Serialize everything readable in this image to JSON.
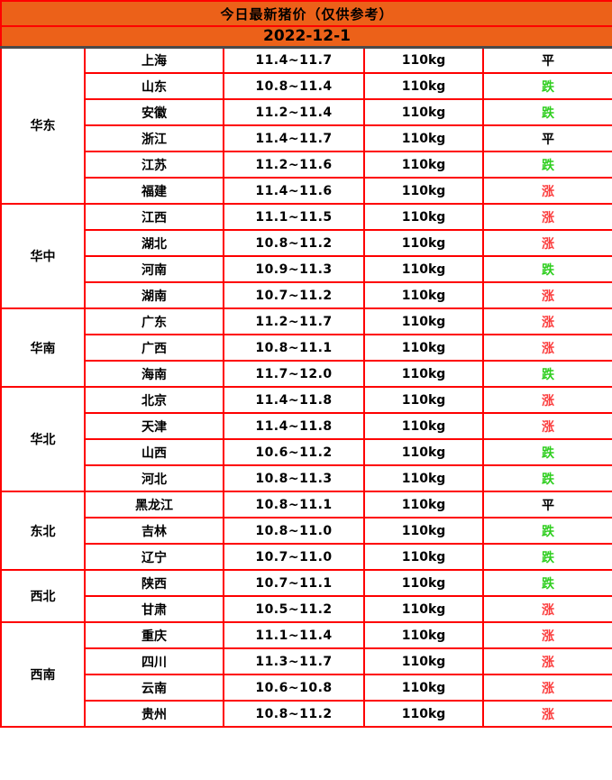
{
  "header": {
    "title": "今日最新猪价（仅供参考）",
    "date": "2022-12-1"
  },
  "table": {
    "regions": [
      {
        "name": "华东",
        "rows": [
          {
            "province": "上海",
            "price": "11.4~11.7",
            "weight": "110kg",
            "trend": "平"
          },
          {
            "province": "山东",
            "price": "10.8~11.4",
            "weight": "110kg",
            "trend": "跌"
          },
          {
            "province": "安徽",
            "price": "11.2~11.4",
            "weight": "110kg",
            "trend": "跌"
          },
          {
            "province": "浙江",
            "price": "11.4~11.7",
            "weight": "110kg",
            "trend": "平"
          },
          {
            "province": "江苏",
            "price": "11.2~11.6",
            "weight": "110kg",
            "trend": "跌"
          },
          {
            "province": "福建",
            "price": "11.4~11.6",
            "weight": "110kg",
            "trend": "涨"
          }
        ]
      },
      {
        "name": "华中",
        "rows": [
          {
            "province": "江西",
            "price": "11.1~11.5",
            "weight": "110kg",
            "trend": "涨"
          },
          {
            "province": "湖北",
            "price": "10.8~11.2",
            "weight": "110kg",
            "trend": "涨"
          },
          {
            "province": "河南",
            "price": "10.9~11.3",
            "weight": "110kg",
            "trend": "跌"
          },
          {
            "province": "湖南",
            "price": "10.7~11.2",
            "weight": "110kg",
            "trend": "涨"
          }
        ]
      },
      {
        "name": "华南",
        "rows": [
          {
            "province": "广东",
            "price": "11.2~11.7",
            "weight": "110kg",
            "trend": "涨"
          },
          {
            "province": "广西",
            "price": "10.8~11.1",
            "weight": "110kg",
            "trend": "涨"
          },
          {
            "province": "海南",
            "price": "11.7~12.0",
            "weight": "110kg",
            "trend": "跌"
          }
        ]
      },
      {
        "name": "华北",
        "rows": [
          {
            "province": "北京",
            "price": "11.4~11.8",
            "weight": "110kg",
            "trend": "涨"
          },
          {
            "province": "天津",
            "price": "11.4~11.8",
            "weight": "110kg",
            "trend": "涨"
          },
          {
            "province": "山西",
            "price": "10.6~11.2",
            "weight": "110kg",
            "trend": "跌"
          },
          {
            "province": "河北",
            "price": "10.8~11.3",
            "weight": "110kg",
            "trend": "跌"
          }
        ]
      },
      {
        "name": "东北",
        "rows": [
          {
            "province": "黑龙江",
            "price": "10.8~11.1",
            "weight": "110kg",
            "trend": "平"
          },
          {
            "province": "吉林",
            "price": "10.8~11.0",
            "weight": "110kg",
            "trend": "跌"
          },
          {
            "province": "辽宁",
            "price": "10.7~11.0",
            "weight": "110kg",
            "trend": "跌"
          }
        ]
      },
      {
        "name": "西北",
        "rows": [
          {
            "province": "陕西",
            "price": "10.7~11.1",
            "weight": "110kg",
            "trend": "跌"
          },
          {
            "province": "甘肃",
            "price": "10.5~11.2",
            "weight": "110kg",
            "trend": "涨"
          }
        ]
      },
      {
        "name": "西南",
        "rows": [
          {
            "province": "重庆",
            "price": "11.1~11.4",
            "weight": "110kg",
            "trend": "涨"
          },
          {
            "province": "四川",
            "price": "11.3~11.7",
            "weight": "110kg",
            "trend": "涨"
          },
          {
            "province": "云南",
            "price": "10.6~10.8",
            "weight": "110kg",
            "trend": "涨"
          },
          {
            "province": "贵州",
            "price": "10.8~11.2",
            "weight": "110kg",
            "trend": "涨"
          }
        ]
      }
    ]
  },
  "colors": {
    "header_bg": "#ec6119",
    "border_red": "#fe0000",
    "header_divider": "#4a4a4a",
    "trend_up": "#fb3c3c",
    "trend_down": "#2fce1f",
    "trend_flat": "#000000"
  },
  "trend_color_map": {
    "涨": "trend_up",
    "跌": "trend_down",
    "平": "trend_flat"
  }
}
